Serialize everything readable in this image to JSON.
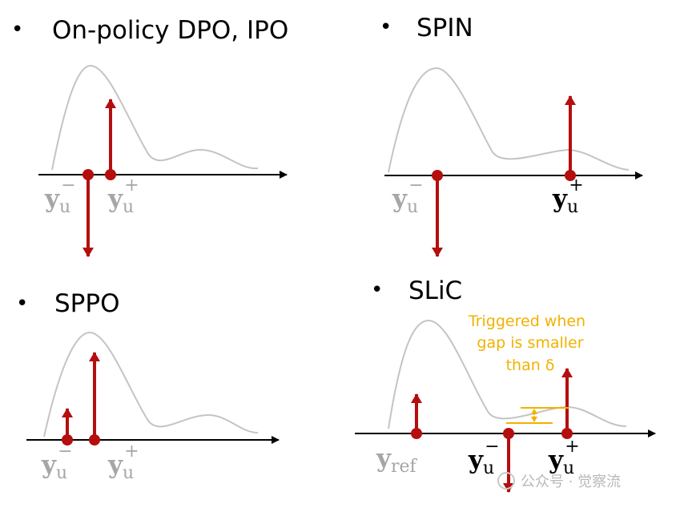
{
  "panels": {
    "dpo": {
      "bullet": "•",
      "title": "On-policy DPO, IPO",
      "neg_label": {
        "base": "y",
        "sub": "u",
        "sup": "−"
      },
      "pos_label": {
        "base": "y",
        "sub": "u",
        "sup": "+"
      }
    },
    "spin": {
      "bullet": "•",
      "title": "SPIN",
      "neg_label": {
        "base": "y",
        "sub": "u",
        "sup": "−"
      },
      "pos_label": {
        "base": "y",
        "sub": "u",
        "sup": "+"
      }
    },
    "sppo": {
      "bullet": "•",
      "title": "SPPO",
      "neg_label": {
        "base": "y",
        "sub": "u",
        "sup": "−"
      },
      "pos_label": {
        "base": "y",
        "sub": "u",
        "sup": "+"
      }
    },
    "slic": {
      "bullet": "•",
      "title": "SLiC",
      "ref_label": {
        "base": "y",
        "sub": "ref"
      },
      "neg_label": {
        "base": "y",
        "sub": "u",
        "sup": "−"
      },
      "pos_label": {
        "base": "y",
        "sub": "u",
        "sup": "+"
      },
      "note_lines": [
        "Triggered when",
        "gap is smaller",
        "than δ"
      ]
    }
  },
  "watermark": "公众号 · 觉察流",
  "colors": {
    "arrow": "#b50e0e",
    "curve": "#c4c4c4",
    "axis": "#000000",
    "gray_label": "#a6a6a6",
    "dark_label": "#000000",
    "note": "#f2b100"
  }
}
